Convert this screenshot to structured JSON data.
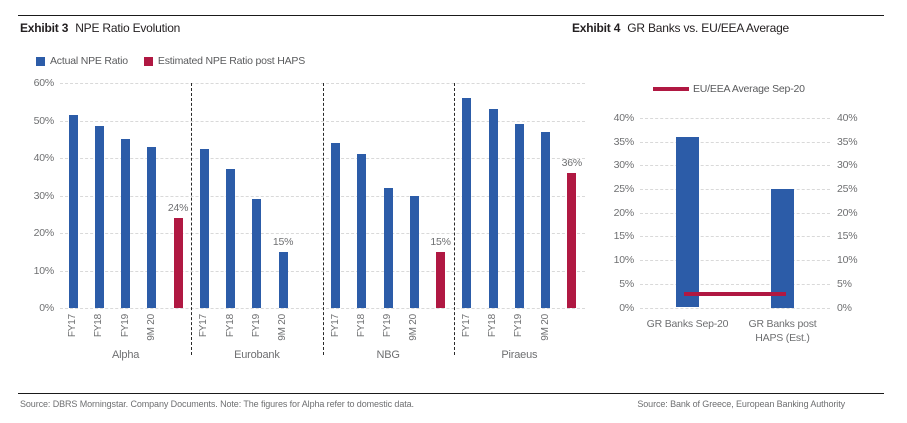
{
  "page": {
    "exhibit3_label": "Exhibit 3",
    "exhibit3_title": "NPE Ratio Evolution",
    "exhibit4_label": "Exhibit 4",
    "exhibit4_title": "GR Banks vs. EU/EEA Average",
    "footer_left": "Source: DBRS Morningstar. Company Documents. Note: The figures for Alpha refer to domestic data.",
    "footer_right": "Source: Bank of Greece, European Banking Authority"
  },
  "colors": {
    "actual_blue": "#2C5CA8",
    "haps_red": "#B01842",
    "grid_gray": "#D9D9D9",
    "text_gray": "#6E6F71",
    "ink": "#1A1A1A"
  },
  "chart_data": [
    {
      "type": "bar",
      "exhibit": "Exhibit 3",
      "title": "NPE Ratio Evolution",
      "ylim": [
        0,
        60
      ],
      "ytick_step": 10,
      "ytick_suffix": "%",
      "grid": "horizontal-dashed",
      "legend_position": "top-left",
      "legend": [
        {
          "name": "Actual NPE Ratio",
          "color": "#2C5CA8"
        },
        {
          "name": "Estimated NPE Ratio post HAPS",
          "color": "#B01842"
        }
      ],
      "groups": [
        {
          "name": "Alpha",
          "bars": [
            {
              "label": "FY17",
              "series": "Actual NPE Ratio",
              "value": 51.5
            },
            {
              "label": "FY18",
              "series": "Actual NPE Ratio",
              "value": 48.5
            },
            {
              "label": "FY19",
              "series": "Actual NPE Ratio",
              "value": 45
            },
            {
              "label": "9M 20",
              "series": "Actual NPE Ratio",
              "value": 43
            },
            {
              "label": "",
              "series": "Estimated NPE Ratio post HAPS",
              "value": 24,
              "data_label": "24%"
            }
          ]
        },
        {
          "name": "Eurobank",
          "bars": [
            {
              "label": "FY17",
              "series": "Actual NPE Ratio",
              "value": 42.5
            },
            {
              "label": "FY18",
              "series": "Actual NPE Ratio",
              "value": 37
            },
            {
              "label": "FY19",
              "series": "Actual NPE Ratio",
              "value": 29
            },
            {
              "label": "9M 20",
              "series": "Actual NPE Ratio",
              "value": 15,
              "data_label": "15%"
            },
            {
              "label": "",
              "series": null,
              "value": null
            }
          ]
        },
        {
          "name": "NBG",
          "bars": [
            {
              "label": "FY17",
              "series": "Actual NPE Ratio",
              "value": 44
            },
            {
              "label": "FY18",
              "series": "Actual NPE Ratio",
              "value": 41
            },
            {
              "label": "FY19",
              "series": "Actual NPE Ratio",
              "value": 32
            },
            {
              "label": "9M 20",
              "series": "Actual NPE Ratio",
              "value": 30
            },
            {
              "label": "",
              "series": "Estimated NPE Ratio post HAPS",
              "value": 15,
              "data_label": "15%"
            }
          ]
        },
        {
          "name": "Piraeus",
          "bars": [
            {
              "label": "FY17",
              "series": "Actual NPE Ratio",
              "value": 56
            },
            {
              "label": "FY18",
              "series": "Actual NPE Ratio",
              "value": 53
            },
            {
              "label": "FY19",
              "series": "Actual NPE Ratio",
              "value": 49
            },
            {
              "label": "9M 20",
              "series": "Actual NPE Ratio",
              "value": 47
            },
            {
              "label": "",
              "series": "Estimated NPE Ratio post HAPS",
              "value": 36,
              "data_label": "36%"
            }
          ]
        }
      ]
    },
    {
      "type": "bar",
      "exhibit": "Exhibit 4",
      "title": "GR Banks vs. EU/EEA Average",
      "ylim": [
        0,
        40
      ],
      "ytick_step": 5,
      "ytick_suffix": "%",
      "y_axis_sides": "both",
      "grid": "horizontal-dashed",
      "categories": [
        "GR Banks Sep-20",
        "GR Banks post\nHAPS (Est.)"
      ],
      "values": [
        36,
        25
      ],
      "bar_color": "#2C5CA8",
      "reference_line": {
        "name": "EU/EEA Average Sep-20",
        "value": 2.8,
        "color": "#B01842"
      }
    }
  ]
}
